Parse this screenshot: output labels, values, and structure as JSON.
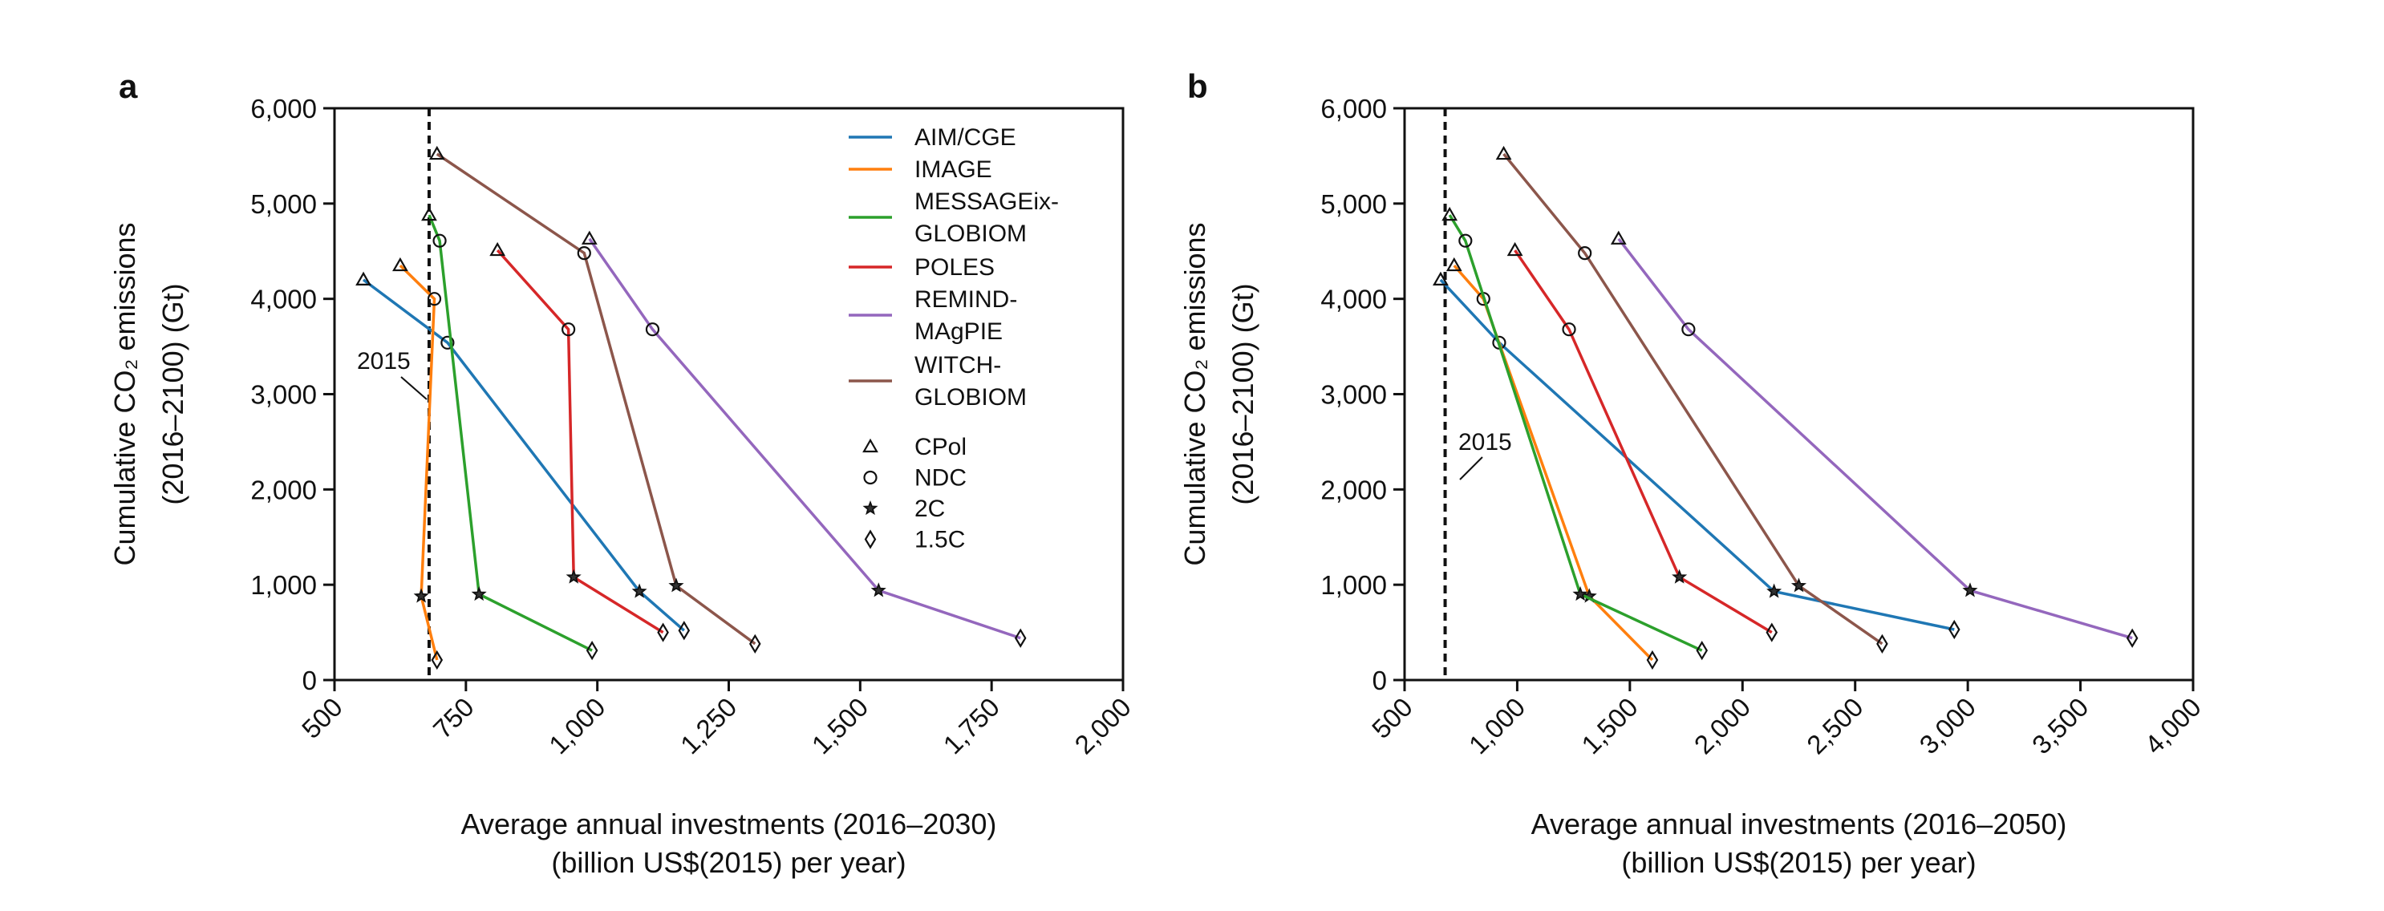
{
  "figure": {
    "legend": {
      "models": [
        {
          "name": "AIM/CGE",
          "lines": [
            "AIM/CGE"
          ],
          "color": "#1f77b4"
        },
        {
          "name": "IMAGE",
          "lines": [
            "IMAGE"
          ],
          "color": "#ff7f0e"
        },
        {
          "name": "MESSAGEix-GLOBIOM",
          "lines": [
            "MESSAGEix-",
            "GLOBIOM"
          ],
          "color": "#2ca02c"
        },
        {
          "name": "POLES",
          "lines": [
            "POLES"
          ],
          "color": "#d62728"
        },
        {
          "name": "REMIND-MAgPIE",
          "lines": [
            "REMIND-",
            "MAgPIE"
          ],
          "color": "#9467bd"
        },
        {
          "name": "WITCH-GLOBIOM",
          "lines": [
            "WITCH-",
            "GLOBIOM"
          ],
          "color": "#8c564b"
        }
      ],
      "scenarios": [
        {
          "name": "CPol",
          "marker": "triangle"
        },
        {
          "name": "NDC",
          "marker": "circle"
        },
        {
          "name": "2C",
          "marker": "star"
        },
        {
          "name": "1.5C",
          "marker": "diamond"
        }
      ]
    }
  },
  "chart_data": [
    {
      "type": "line",
      "panel": "a",
      "xlabel": "Average annual investments (2016–2030)",
      "xlabel2": "(billion US$(2015) per year)",
      "ylabel": "Cumulative CO₂ emissions",
      "ylabel2": "(2016–2100) (Gt)",
      "xlim": [
        500,
        2000
      ],
      "ylim": [
        0,
        6000
      ],
      "xticks": [
        500,
        750,
        1000,
        1250,
        1500,
        1750,
        2000
      ],
      "xtick_labels": [
        "500",
        "750",
        "1,000",
        "1,250",
        "1,500",
        "1,750",
        "2,000"
      ],
      "yticks": [
        0,
        1000,
        2000,
        3000,
        4000,
        5000,
        6000
      ],
      "ytick_labels": [
        "0",
        "1,000",
        "2,000",
        "3,000",
        "4,000",
        "5,000",
        "6,000"
      ],
      "reference_line": {
        "x": 680,
        "label": "2015"
      },
      "scenarios": [
        "CPol",
        "NDC",
        "2C",
        "1.5C"
      ],
      "series": [
        {
          "name": "AIM/CGE",
          "points": [
            [
              555,
              4200
            ],
            [
              715,
              3540
            ],
            [
              1080,
              930
            ],
            [
              1165,
              520
            ]
          ]
        },
        {
          "name": "IMAGE",
          "points": [
            [
              625,
              4350
            ],
            [
              690,
              4000
            ],
            [
              665,
              880
            ],
            [
              695,
              210
            ]
          ]
        },
        {
          "name": "MESSAGEix-GLOBIOM",
          "points": [
            [
              680,
              4880
            ],
            [
              700,
              4610
            ],
            [
              775,
              900
            ],
            [
              990,
              310
            ]
          ]
        },
        {
          "name": "POLES",
          "points": [
            [
              810,
              4510
            ],
            [
              945,
              3680
            ],
            [
              955,
              1080
            ],
            [
              1125,
              500
            ]
          ]
        },
        {
          "name": "REMIND-MAgPIE",
          "points": [
            [
              985,
              4630
            ],
            [
              1105,
              3680
            ],
            [
              1535,
              940
            ],
            [
              1805,
              440
            ]
          ]
        },
        {
          "name": "WITCH-GLOBIOM",
          "points": [
            [
              695,
              5520
            ],
            [
              975,
              4480
            ],
            [
              1150,
              990
            ],
            [
              1300,
              380
            ]
          ]
        }
      ]
    },
    {
      "type": "line",
      "panel": "b",
      "xlabel": "Average annual investments (2016–2050)",
      "xlabel2": "(billion US$(2015) per year)",
      "ylabel": "Cumulative CO₂ emissions",
      "ylabel2": "(2016–2100) (Gt)",
      "xlim": [
        500,
        4000
      ],
      "ylim": [
        0,
        6000
      ],
      "xticks": [
        500,
        1000,
        1500,
        2000,
        2500,
        3000,
        3500,
        4000
      ],
      "xtick_labels": [
        "500",
        "1,000",
        "1,500",
        "2,000",
        "2,500",
        "3,000",
        "3,500",
        "4,000"
      ],
      "yticks": [
        0,
        1000,
        2000,
        3000,
        4000,
        5000,
        6000
      ],
      "ytick_labels": [
        "0",
        "1,000",
        "2,000",
        "3,000",
        "4,000",
        "5,000",
        "6,000"
      ],
      "reference_line": {
        "x": 680,
        "label": "2015"
      },
      "scenarios": [
        "CPol",
        "NDC",
        "2C",
        "1.5C"
      ],
      "series": [
        {
          "name": "AIM/CGE",
          "points": [
            [
              660,
              4200
            ],
            [
              920,
              3540
            ],
            [
              2140,
              930
            ],
            [
              2940,
              530
            ]
          ]
        },
        {
          "name": "IMAGE",
          "points": [
            [
              720,
              4350
            ],
            [
              850,
              4000
            ],
            [
              1320,
              880
            ],
            [
              1600,
              210
            ]
          ]
        },
        {
          "name": "MESSAGEix-GLOBIOM",
          "points": [
            [
              700,
              4880
            ],
            [
              770,
              4610
            ],
            [
              1280,
              900
            ],
            [
              1820,
              310
            ]
          ]
        },
        {
          "name": "POLES",
          "points": [
            [
              990,
              4510
            ],
            [
              1230,
              3680
            ],
            [
              1720,
              1080
            ],
            [
              2130,
              500
            ]
          ]
        },
        {
          "name": "REMIND-MAgPIE",
          "points": [
            [
              1450,
              4630
            ],
            [
              1760,
              3680
            ],
            [
              3010,
              940
            ],
            [
              3730,
              440
            ]
          ]
        },
        {
          "name": "WITCH-GLOBIOM",
          "points": [
            [
              940,
              5520
            ],
            [
              1300,
              4480
            ],
            [
              2250,
              990
            ],
            [
              2620,
              380
            ]
          ]
        }
      ]
    }
  ]
}
